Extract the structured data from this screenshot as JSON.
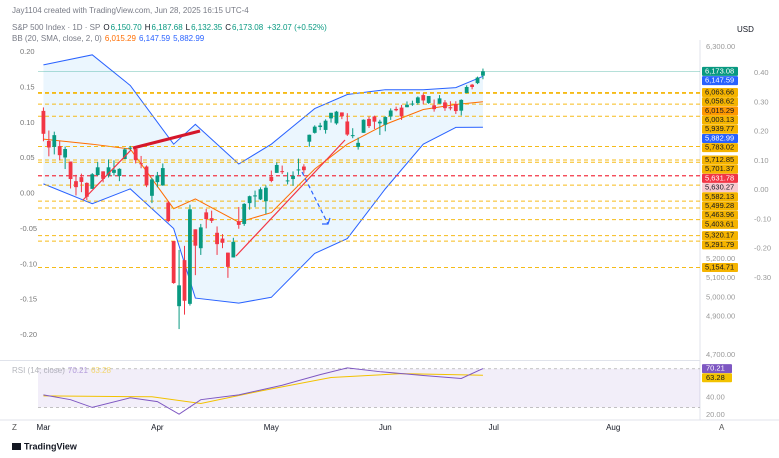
{
  "credit": "Jay1104 created with TradingView.com, Jun 28, 2025 16:15 UTC-4",
  "chart_data": {
    "type": "candlestick",
    "symbol": "S&P 500 Index · 1D · SP",
    "ohlc_legend": [
      {
        "label": "O",
        "value": "6,150.70"
      },
      {
        "label": "H",
        "value": "6,187.68"
      },
      {
        "label": "L",
        "value": "6,132.35"
      },
      {
        "label": "C",
        "value": "6,173.08"
      },
      {
        "label": "",
        "value": "+32.07 (+0.52%)"
      }
    ],
    "bb_legend": {
      "label": "BB (20, SMA, close, 2, 0)",
      "values": [
        "6,015.29",
        "6,147.59",
        "5,882.99"
      ],
      "colors": [
        "#ff6d00",
        "#2962ff",
        "#2962ff"
      ]
    },
    "currency": "USD",
    "up_color": "#089981",
    "down_color": "#f23645",
    "xlim": [
      -1,
      121
    ],
    "xticks": [
      {
        "value": 0,
        "label": "Mar"
      },
      {
        "value": 21,
        "label": "Apr"
      },
      {
        "value": 42,
        "label": "May"
      },
      {
        "value": 63,
        "label": "Jun"
      },
      {
        "value": 83,
        "label": "Jul"
      },
      {
        "value": 105,
        "label": "Aug"
      }
    ],
    "ylim": [
      4690,
      6336
    ],
    "yticks": [
      {
        "value": 6300,
        "label": "6,300.00"
      },
      {
        "value": 5200,
        "label": "5,200.00"
      },
      {
        "value": 5100,
        "label": "5,100.00"
      },
      {
        "value": 5000,
        "label": "5,000.00"
      },
      {
        "value": 4900,
        "label": "4,900.00"
      },
      {
        "value": 4700,
        "label": "4,700.00"
      }
    ],
    "left_lim": [
      -0.231,
      0.217
    ],
    "left_ticks": [
      {
        "value": 0.2,
        "label": "0.20"
      },
      {
        "value": 0.15,
        "label": "0.15"
      },
      {
        "value": 0.1,
        "label": "0.10"
      },
      {
        "value": 0.05,
        "label": "0.05"
      },
      {
        "value": 0,
        "label": "0.00"
      },
      {
        "value": -0.05,
        "label": "-0.05"
      },
      {
        "value": -0.1,
        "label": "-0.10"
      },
      {
        "value": -0.15,
        "label": "-0.15"
      },
      {
        "value": -0.2,
        "label": "-0.20"
      }
    ],
    "inner_lim": [
      -0.57,
      0.513
    ],
    "inner_ticks": [
      {
        "value": 0.4,
        "label": "0.40"
      },
      {
        "value": 0.3,
        "label": "0.30"
      },
      {
        "value": 0.2,
        "label": "0.20"
      },
      {
        "value": 0.1,
        "label": "0.10"
      },
      {
        "value": 0,
        "label": "0.00"
      },
      {
        "value": -0.1,
        "label": "-0.10"
      },
      {
        "value": -0.2,
        "label": "-0.20"
      },
      {
        "value": -0.3,
        "label": "-0.30"
      }
    ],
    "open": [
      5968,
      5812,
      5781,
      5785,
      5726,
      5705,
      5603,
      5624,
      5594,
      5563,
      5635,
      5654,
      5632,
      5646,
      5630,
      5718,
      5775,
      5771,
      5696,
      5679,
      5527,
      5598,
      5581,
      5492,
      5292,
      4954,
      5193,
      4966,
      5353,
      5255,
      5441,
      5411,
      5335,
      5305,
      5232,
      5207,
      5395,
      5381,
      5489,
      5529,
      5508,
      5499,
      5625,
      5646,
      5655,
      5605,
      5614,
      5663,
      5679,
      5808,
      5854,
      5884,
      5869,
      5929,
      5903,
      5960,
      5913,
      5841,
      5781,
      5854,
      5926,
      5939,
      5903,
      5896,
      5939,
      5978,
      5985,
      5987,
      6004,
      6009,
      6050,
      6009,
      5997,
      6005,
      6012,
      5987,
      6004,
      5969,
      6061,
      6104,
      6112,
      6150.7
    ],
    "high": [
      5986,
      5866,
      5860,
      5812,
      5783,
      5705,
      5636,
      5642,
      5597,
      5645,
      5703,
      5654,
      5716,
      5711,
      5670,
      5775,
      5786,
      5783,
      5734,
      5685,
      5620,
      5651,
      5695,
      5500,
      5292,
      5246,
      5267,
      5481,
      5353,
      5381,
      5459,
      5450,
      5368,
      5328,
      5232,
      5309,
      5469,
      5489,
      5528,
      5554,
      5571,
      5581,
      5658,
      5700,
      5684,
      5649,
      5654,
      5720,
      5691,
      5845,
      5893,
      5906,
      5924,
      5958,
      5968,
      5960,
      5956,
      5878,
      5829,
      5924,
      5938,
      5943,
      5922,
      5940,
      5981,
      5990,
      5999,
      6017,
      6021,
      6043,
      6059,
      6045,
      6027,
      6050,
      6024,
      6018,
      6018,
      6028,
      6101,
      6108,
      6146,
      6187.68
    ],
    "low": [
      5810,
      5732,
      5742,
      5711,
      5666,
      5565,
      5529,
      5546,
      5505,
      5563,
      5631,
      5597,
      5622,
      5632,
      5603,
      5718,
      5764,
      5695,
      5670,
      5572,
      5489,
      5571,
      5579,
      5390,
      5070,
      4835,
      4910,
      4957,
      5115,
      5220,
      5358,
      5386,
      5220,
      5255,
      5101,
      5207,
      5356,
      5371,
      5455,
      5468,
      5505,
      5433,
      5597,
      5646,
      5640,
      5586,
      5579,
      5636,
      5643,
      5782,
      5850,
      5868,
      5850,
      5907,
      5896,
      5925,
      5838,
      5826,
      5767,
      5854,
      5879,
      5874,
      5843,
      5862,
      5921,
      5966,
      5921,
      5987,
      5994,
      6000,
      6002,
      6004,
      5964,
      6005,
      5968,
      5971,
      5952,
      5944,
      6059,
      6080,
      6107,
      6132.35
    ],
    "close": [
      5849,
      5778,
      5842,
      5738,
      5770,
      5614,
      5572,
      5599,
      5522,
      5639,
      5675,
      5615,
      5675,
      5662,
      5667,
      5768,
      5777,
      5712,
      5693,
      5581,
      5612,
      5633,
      5671,
      5396,
      5074,
      5062,
      4982,
      5457,
      5268,
      5363,
      5406,
      5397,
      5276,
      5283,
      5158,
      5288,
      5376,
      5485,
      5525,
      5529,
      5561,
      5569,
      5604,
      5687,
      5650,
      5607,
      5631,
      5664,
      5660,
      5844,
      5886,
      5892,
      5917,
      5958,
      5964,
      5940,
      5845,
      5842,
      5802,
      5922,
      5889,
      5912,
      5912,
      5936,
      5970,
      5971,
      5939,
      6000,
      6006,
      6038,
      6022,
      6045,
      5977,
      6033,
      5982,
      5981,
      5967,
      6025,
      6092,
      6092,
      6141,
      6173.08
    ],
    "bb": {
      "x": [
        0,
        9,
        16,
        24,
        28,
        36,
        42,
        50,
        56,
        63,
        70,
        76,
        81
      ],
      "upper": [
        6207,
        6259,
        6100,
        5795,
        5898,
        5692,
        5795,
        5980,
        6053,
        6078,
        6078,
        6089,
        6147.59
      ],
      "middle": [
        5821,
        5795,
        5770,
        5460,
        5511,
        5390,
        5440,
        5666,
        5795,
        5898,
        5975,
        6001,
        6015.29
      ],
      "lower": [
        5589,
        5486,
        5563,
        5357,
        4996,
        4970,
        5000,
        5228,
        5305,
        5563,
        5795,
        5882,
        5882.99
      ],
      "band_color": "#2962ff",
      "mid_color": "#ff6d00"
    },
    "price_labels": [
      {
        "value": 6173.08,
        "label": "6,173.08",
        "color": "#089981"
      },
      {
        "value": 6147.59,
        "label": "6,147.59",
        "color": "#2962ff"
      },
      {
        "value": 6015.29,
        "label": "6,015.29",
        "color": "#ff9800"
      },
      {
        "value": 5882.99,
        "label": "5,882.99",
        "color": "#2962ff"
      }
    ],
    "levels": [
      {
        "value": 6063.66,
        "label": "6,063.66",
        "color": "#f5b400"
      },
      {
        "value": 6058.62,
        "label": "6,058.62",
        "color": "#f5b400"
      },
      {
        "value": 6003.13,
        "label": "6,003.13",
        "color": "#f5b400"
      },
      {
        "value": 5939.77,
        "label": "5,939.77",
        "color": "#f5b400"
      },
      {
        "value": 5783.02,
        "label": "5,783.02",
        "color": "#f5b400"
      },
      {
        "value": 5712.85,
        "label": "5,712.85",
        "color": "#f5b400"
      },
      {
        "value": 5701.37,
        "label": "5,701.37",
        "color": "#f5b400"
      },
      {
        "value": 5631.78,
        "label": "5,631.78",
        "color": "#f23645"
      },
      {
        "value": 5630.27,
        "label": "5,630.27",
        "color": "#f8c9cf"
      },
      {
        "value": 5582.13,
        "label": "5,582.13",
        "color": "#f5b400"
      },
      {
        "value": 5499.28,
        "label": "5,499.28",
        "color": "#f5b400"
      },
      {
        "value": 5463.96,
        "label": "5,463.96",
        "color": "#f5b400"
      },
      {
        "value": 5403.61,
        "label": "5,403.61",
        "color": "#f5b400"
      },
      {
        "value": 5320.17,
        "label": "5,320.17",
        "color": "#f5b400"
      },
      {
        "value": 5291.79,
        "label": "5,291.79",
        "color": "#f5b400"
      },
      {
        "value": 5154.71,
        "label": "5,154.71",
        "color": "#f5b400"
      }
    ],
    "rsi": {
      "label": "RSI (14, close)",
      "legend_values": [
        "70.21",
        "63.28"
      ],
      "ylim": [
        18,
        76
      ],
      "yticks": [
        {
          "value": 40,
          "label": "40.00"
        },
        {
          "value": 20,
          "label": "20.00"
        }
      ],
      "band": [
        30,
        70
      ],
      "x": [
        0,
        5,
        9,
        16,
        21,
        25,
        29,
        36,
        44,
        51,
        56,
        62,
        70,
        77,
        81
      ],
      "values": [
        43,
        38,
        30,
        40,
        36,
        23,
        38,
        43,
        53,
        64,
        71,
        67,
        63,
        60,
        70.21
      ],
      "color": "#7e57c2",
      "ma_x": [
        0,
        20,
        29,
        40,
        53,
        66,
        81
      ],
      "ma_values": [
        42,
        41,
        34,
        47,
        61,
        65,
        63.28
      ],
      "ma_color": "#f2c200",
      "tags": [
        {
          "value": 70.21,
          "label": "70.21",
          "color": "#7e57c2"
        },
        {
          "value": 63.28,
          "label": "63.28",
          "color": "#f2c200"
        }
      ]
    }
  },
  "footer": {
    "left_button": "Z",
    "right_button": "A",
    "logo": "TradingView"
  }
}
